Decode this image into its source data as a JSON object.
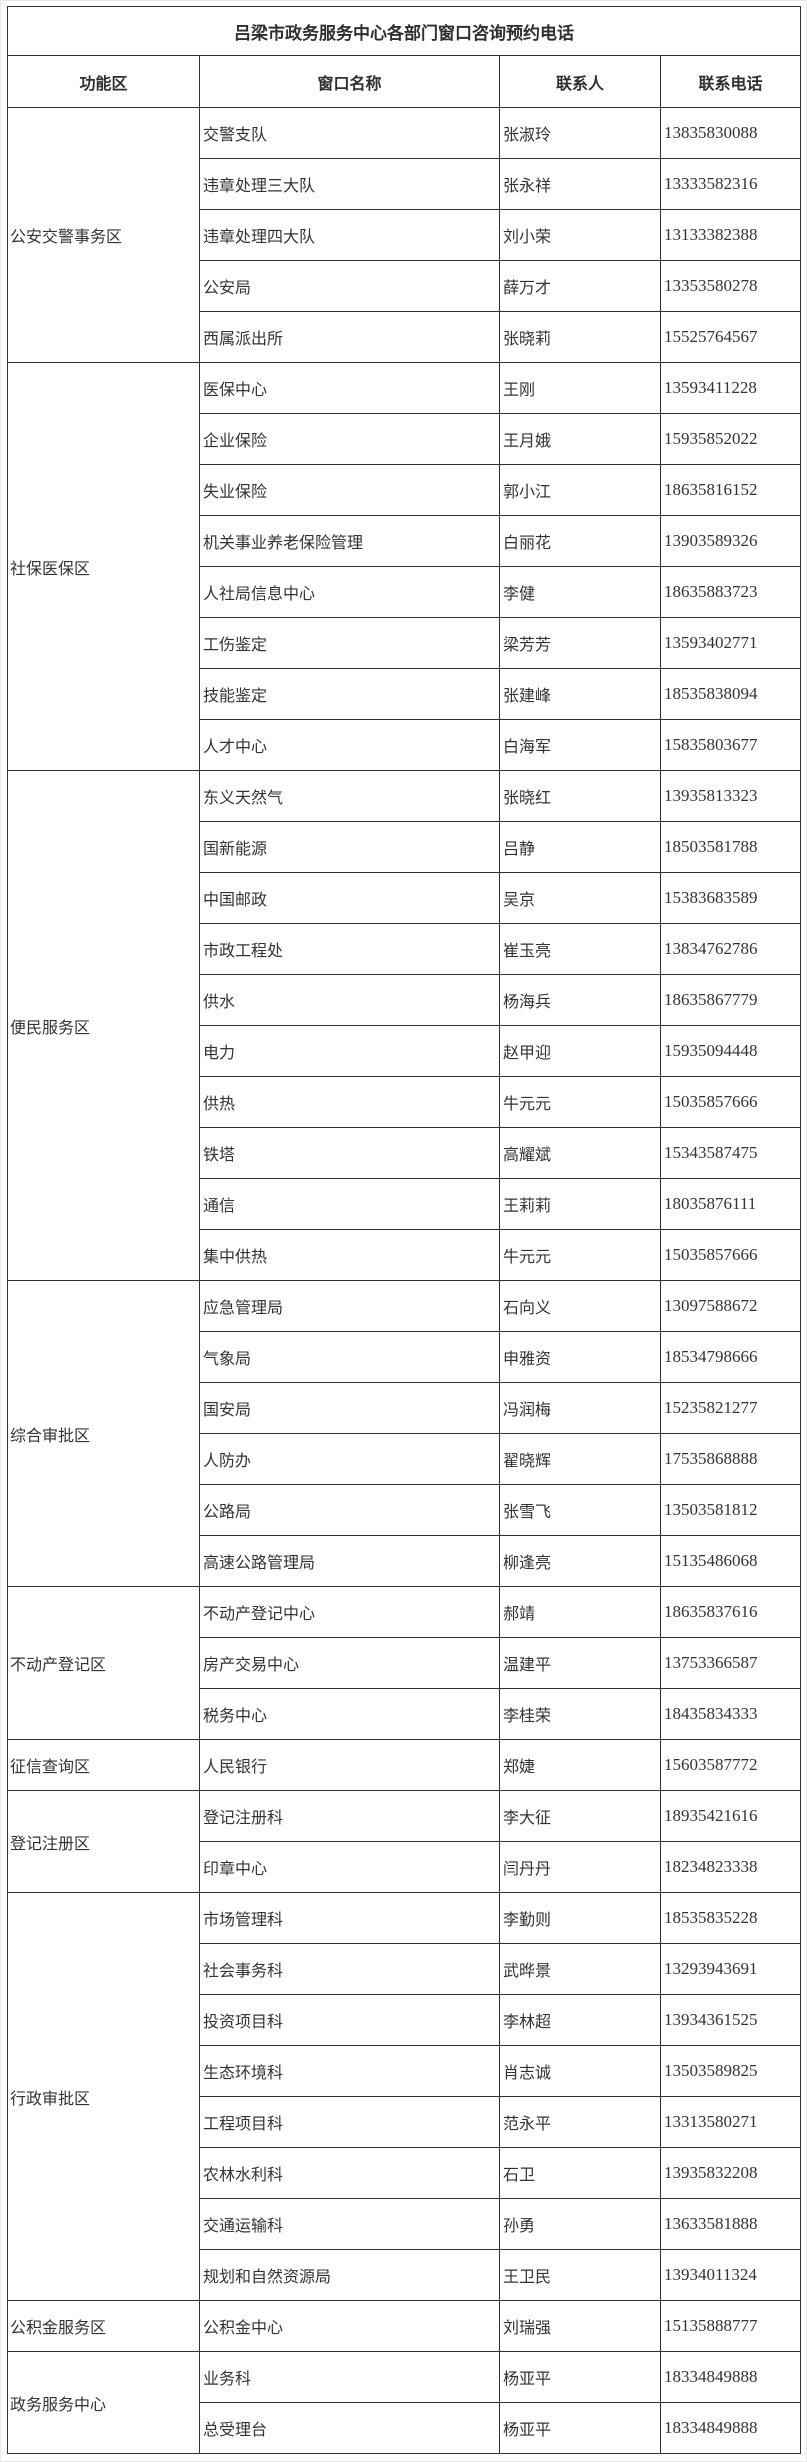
{
  "title": "吕梁市政务服务中心各部门窗口咨询预约电话",
  "colors": {
    "border": "#333333",
    "text": "#333333",
    "background": "#ffffff"
  },
  "table": {
    "headers": [
      "功能区",
      "窗口名称",
      "联系人",
      "联系电话"
    ],
    "groups": [
      {
        "area": "公安交警事务区",
        "rows": [
          [
            "交警支队",
            "张淑玲",
            "13835830088"
          ],
          [
            "违章处理三大队",
            "张永祥",
            "13333582316"
          ],
          [
            "违章处理四大队",
            "刘小荣",
            "13133382388"
          ],
          [
            "公安局",
            "薛万才",
            "13353580278"
          ],
          [
            "西属派出所",
            "张晓莉",
            "15525764567"
          ]
        ]
      },
      {
        "area": "社保医保区",
        "rows": [
          [
            "医保中心",
            "王刚",
            "13593411228"
          ],
          [
            "企业保险",
            "王月娥",
            "15935852022"
          ],
          [
            "失业保险",
            "郭小江",
            "18635816152"
          ],
          [
            "机关事业养老保险管理",
            "白丽花",
            "13903589326"
          ],
          [
            "人社局信息中心",
            "李健",
            "18635883723"
          ],
          [
            "工伤鉴定",
            "梁芳芳",
            "13593402771"
          ],
          [
            "技能鉴定",
            "张建峰",
            "18535838094"
          ],
          [
            "人才中心",
            "白海军",
            "15835803677"
          ]
        ]
      },
      {
        "area": "便民服务区",
        "rows": [
          [
            "东义天然气",
            "张晓红",
            "13935813323"
          ],
          [
            "国新能源",
            "吕静",
            "18503581788"
          ],
          [
            "中国邮政",
            "吴京",
            "15383683589"
          ],
          [
            "市政工程处",
            "崔玉亮",
            "13834762786"
          ],
          [
            "供水",
            "杨海兵",
            "18635867779"
          ],
          [
            "电力",
            "赵甲迎",
            "15935094448"
          ],
          [
            "供热",
            "牛元元",
            "15035857666"
          ],
          [
            "铁塔",
            "高耀斌",
            "15343587475"
          ],
          [
            "通信",
            "王莉莉",
            "18035876111"
          ],
          [
            "集中供热",
            "牛元元",
            "15035857666"
          ]
        ]
      },
      {
        "area": "综合审批区",
        "rows": [
          [
            "应急管理局",
            "石向义",
            "13097588672"
          ],
          [
            "气象局",
            "申雅资",
            "18534798666"
          ],
          [
            "国安局",
            "冯润梅",
            "15235821277"
          ],
          [
            "人防办",
            "翟晓辉",
            "17535868888"
          ],
          [
            "公路局",
            "张雪飞",
            "13503581812"
          ],
          [
            "高速公路管理局",
            "柳逢亮",
            "15135486068"
          ]
        ]
      },
      {
        "area": "不动产登记区",
        "rows": [
          [
            "不动产登记中心",
            "郝靖",
            "18635837616"
          ],
          [
            "房产交易中心",
            "温建平",
            "13753366587"
          ],
          [
            "税务中心",
            "李桂荣",
            "18435834333"
          ]
        ]
      },
      {
        "area": "征信查询区",
        "rows": [
          [
            "人民银行",
            "郑婕",
            "15603587772"
          ]
        ]
      },
      {
        "area": "登记注册区",
        "rows": [
          [
            "登记注册科",
            "李大征",
            "18935421616"
          ],
          [
            "印章中心",
            "闫丹丹",
            "18234823338"
          ]
        ]
      },
      {
        "area": "行政审批区",
        "rows": [
          [
            "市场管理科",
            "李勤则",
            "18535835228"
          ],
          [
            "社会事务科",
            "武晔景",
            "13293943691"
          ],
          [
            "投资项目科",
            "李林超",
            "13934361525"
          ],
          [
            "生态环境科",
            "肖志诚",
            "13503589825"
          ],
          [
            "工程项目科",
            "范永平",
            "13313580271"
          ],
          [
            "农林水利科",
            "石卫",
            "13935832208"
          ],
          [
            "交通运输科",
            "孙勇",
            "13633581888"
          ],
          [
            "规划和自然资源局",
            "王卫民",
            "13934011324"
          ]
        ]
      },
      {
        "area": "公积金服务区",
        "rows": [
          [
            "公积金中心",
            "刘瑞强",
            "15135888777"
          ]
        ]
      },
      {
        "area": "政务服务中心",
        "rows": [
          [
            "业务科",
            "杨亚平",
            "18334849888"
          ],
          [
            "总受理台",
            "杨亚平",
            "18334849888"
          ]
        ]
      }
    ]
  }
}
